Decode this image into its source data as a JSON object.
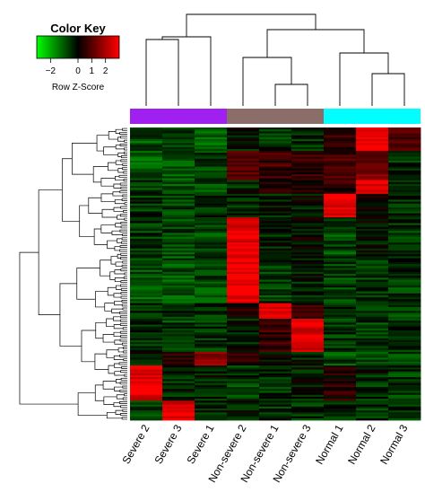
{
  "chart_data": {
    "type": "heatmap",
    "title": "",
    "color_key": {
      "title": "Color Key",
      "xlabel": "Row Z-Score",
      "ticks": [
        "−2",
        "0",
        "1",
        "2"
      ],
      "range": [
        -3,
        3
      ],
      "low_color": "#00ff00",
      "mid_color": "#000000",
      "high_color": "#ff0000"
    },
    "columns": [
      "Severe 2",
      "Severe 3",
      "Severe 1",
      "Non-severe 2",
      "Non-severe 1",
      "Non-severe 3",
      "Normal 1",
      "Normal 2",
      "Normal 3"
    ],
    "groups": [
      {
        "members": [
          "Severe 2",
          "Severe 3",
          "Severe 1"
        ],
        "color": "#a020f0"
      },
      {
        "members": [
          "Non-severe 2",
          "Non-severe 1",
          "Non-severe 3"
        ],
        "color": "#8b6e6a"
      },
      {
        "members": [
          "Normal 1",
          "Normal 2",
          "Normal 3"
        ],
        "color": "#00ffff"
      }
    ],
    "row_count": 150,
    "row_blocks": [
      {
        "rows": [
          0,
          12
        ],
        "values": [
          -0.9,
          -0.7,
          -1.0,
          -0.3,
          -0.6,
          -0.4,
          0.6,
          2.9,
          0.8
        ]
      },
      {
        "rows": [
          12,
          27
        ],
        "values": [
          -1.1,
          -0.9,
          -0.8,
          0.9,
          0.7,
          0.6,
          0.9,
          1.3,
          -0.6
        ]
      },
      {
        "rows": [
          27,
          34
        ],
        "values": [
          -0.7,
          -1.0,
          -0.8,
          -0.4,
          0.4,
          0.3,
          0.5,
          2.7,
          -0.5
        ]
      },
      {
        "rows": [
          34,
          46
        ],
        "values": [
          -0.5,
          -0.6,
          -0.5,
          -0.4,
          -0.3,
          -0.2,
          2.8,
          0.2,
          -0.4
        ]
      },
      {
        "rows": [
          46,
          65
        ],
        "values": [
          -0.6,
          -0.8,
          -0.7,
          2.8,
          -0.3,
          -0.1,
          -0.8,
          -0.2,
          -0.5
        ]
      },
      {
        "rows": [
          65,
          90
        ],
        "values": [
          -0.9,
          -0.9,
          -0.8,
          2.9,
          -0.6,
          -0.3,
          -0.7,
          -0.6,
          -0.6
        ]
      },
      {
        "rows": [
          90,
          98
        ],
        "values": [
          -0.3,
          -0.6,
          -0.6,
          0.2,
          2.7,
          0.4,
          -0.4,
          -0.6,
          -0.6
        ]
      },
      {
        "rows": [
          98,
          115
        ],
        "values": [
          -0.6,
          -0.7,
          -0.5,
          -0.3,
          0.6,
          2.7,
          -0.6,
          -0.7,
          -0.6
        ]
      },
      {
        "rows": [
          115,
          122
        ],
        "values": [
          -0.3,
          0.4,
          1.8,
          0.3,
          -0.2,
          -0.3,
          -0.8,
          -0.9,
          -0.7
        ]
      },
      {
        "rows": [
          122,
          140
        ],
        "values": [
          2.8,
          -0.4,
          -0.3,
          -0.6,
          -0.5,
          -0.3,
          0.4,
          -0.4,
          -0.6
        ]
      },
      {
        "rows": [
          140,
          150
        ],
        "values": [
          -0.7,
          2.8,
          -0.4,
          -0.3,
          -0.5,
          -0.5,
          -0.5,
          -0.6,
          -0.6
        ]
      }
    ]
  }
}
